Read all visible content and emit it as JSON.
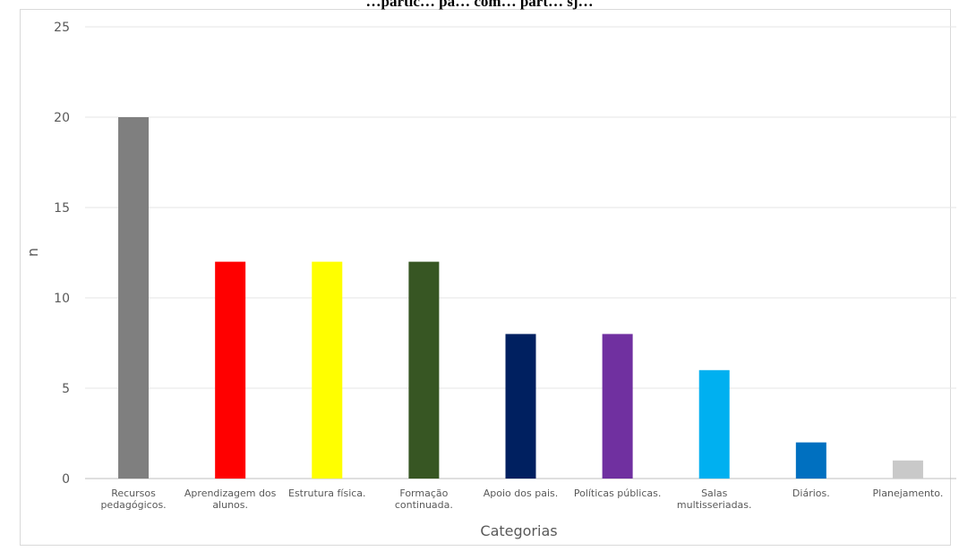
{
  "chart_data": {
    "type": "bar",
    "title": "…partic… pa… com… part… sj…",
    "xlabel": "Categorias",
    "ylabel": "n",
    "ylim": [
      0,
      25
    ],
    "yticks": [
      0,
      5,
      10,
      15,
      20,
      25
    ],
    "grid": true,
    "legend": "none",
    "categories": [
      [
        "Recursos",
        "pedagógicos."
      ],
      [
        "Aprendizagem dos",
        "alunos."
      ],
      [
        "Estrutura física."
      ],
      [
        "Formação",
        "continuada."
      ],
      [
        "Apoio dos pais."
      ],
      [
        "Políticas públicas."
      ],
      [
        "Salas",
        "multisseriadas."
      ],
      [
        "Diários."
      ],
      [
        "Planejamento."
      ]
    ],
    "values": [
      20,
      12,
      12,
      12,
      8,
      8,
      6,
      2,
      1
    ],
    "colors": [
      "#7f7f7f",
      "#ff0000",
      "#ffff00",
      "#375623",
      "#002060",
      "#7030a0",
      "#00b0f0",
      "#0070c0",
      "#c9c9c9"
    ]
  }
}
